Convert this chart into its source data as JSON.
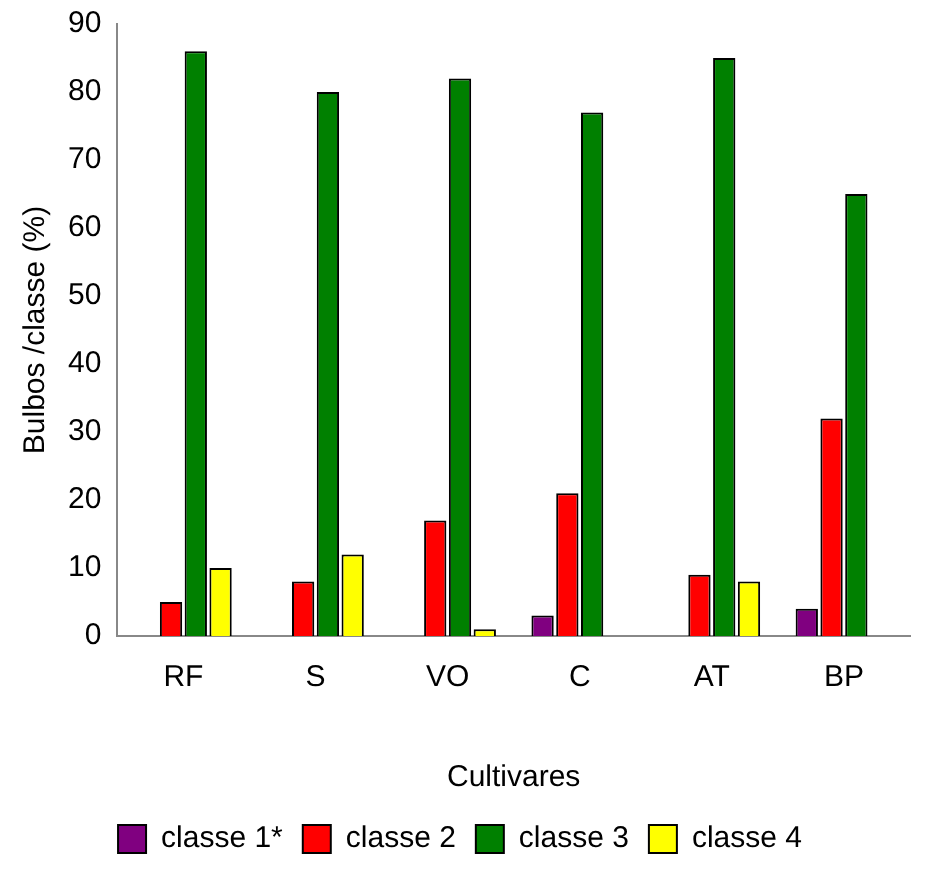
{
  "chart_data": {
    "type": "bar",
    "xlabel": "Cultivares",
    "ylabel": "Bulbos /classe (%)",
    "categories": [
      "RF",
      "S",
      "VO",
      "C",
      "AT",
      "BP"
    ],
    "series": [
      {
        "name": "classe 1*",
        "color": "#800080",
        "values": [
          0,
          0,
          0,
          3,
          0,
          4
        ]
      },
      {
        "name": "classe 2",
        "color": "#ff0000",
        "values": [
          5,
          8,
          17,
          21,
          9,
          32
        ]
      },
      {
        "name": "classe 3",
        "color": "#008000",
        "values": [
          86,
          80,
          82,
          77,
          85,
          65
        ]
      },
      {
        "name": "classe 4",
        "color": "#ffff00",
        "values": [
          10,
          12,
          1,
          0,
          8,
          0
        ]
      }
    ],
    "ylim": [
      0,
      90
    ],
    "yticks": [
      0,
      10,
      20,
      30,
      40,
      50,
      60,
      70,
      80,
      90
    ],
    "grid": false,
    "legend": "bottom"
  }
}
